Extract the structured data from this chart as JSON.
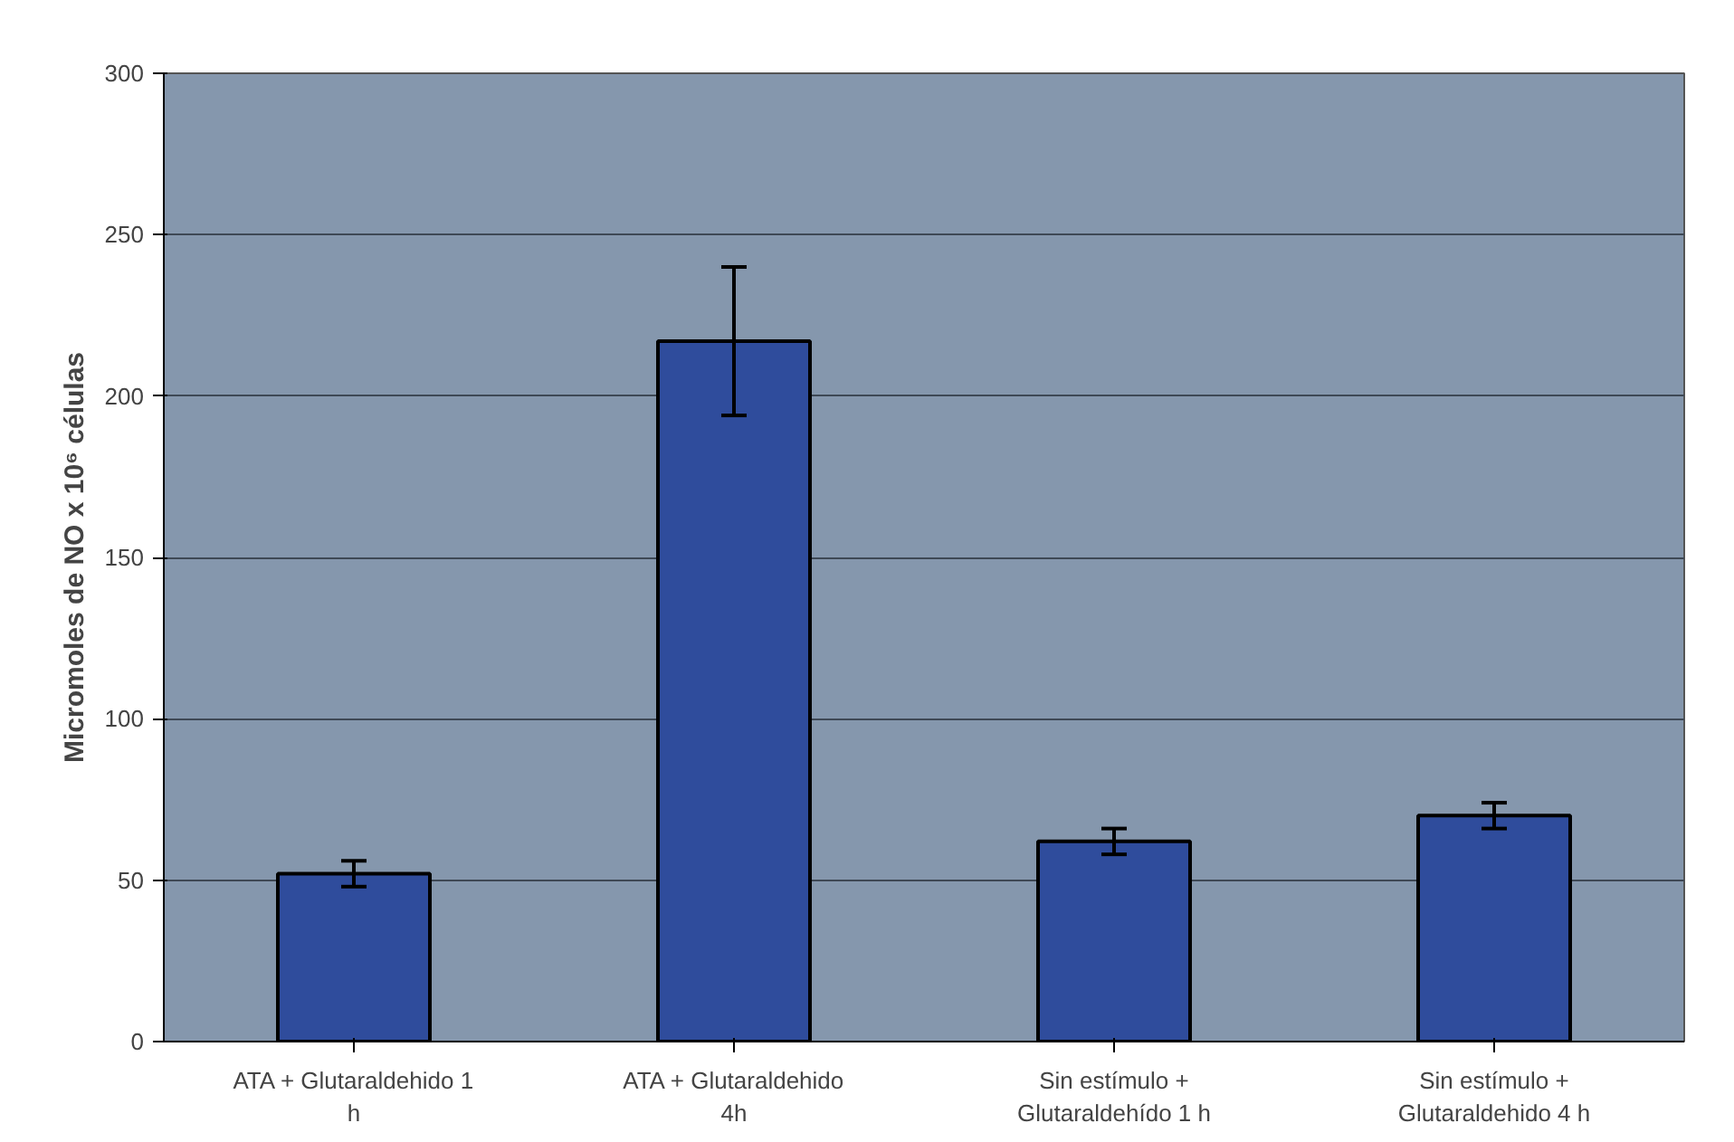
{
  "chart_data": {
    "type": "bar",
    "ylabel": "Micromoles de NO x 10⁶ células",
    "categories": [
      "ATA + Glutaraldehido 1 h",
      "ATA + Glutaraldehido 4h",
      "Sin estímulo + Glutaraldehído 1 h",
      "Sin estímulo + Glutaraldehido 4 h"
    ],
    "values": [
      52,
      217,
      62,
      70
    ],
    "errors": [
      4,
      23,
      4,
      4
    ],
    "color": "#2f4c9c",
    "ylim": [
      0,
      300
    ],
    "yticks": [
      0,
      50,
      100,
      150,
      200,
      250,
      300
    ],
    "grid": "y"
  }
}
